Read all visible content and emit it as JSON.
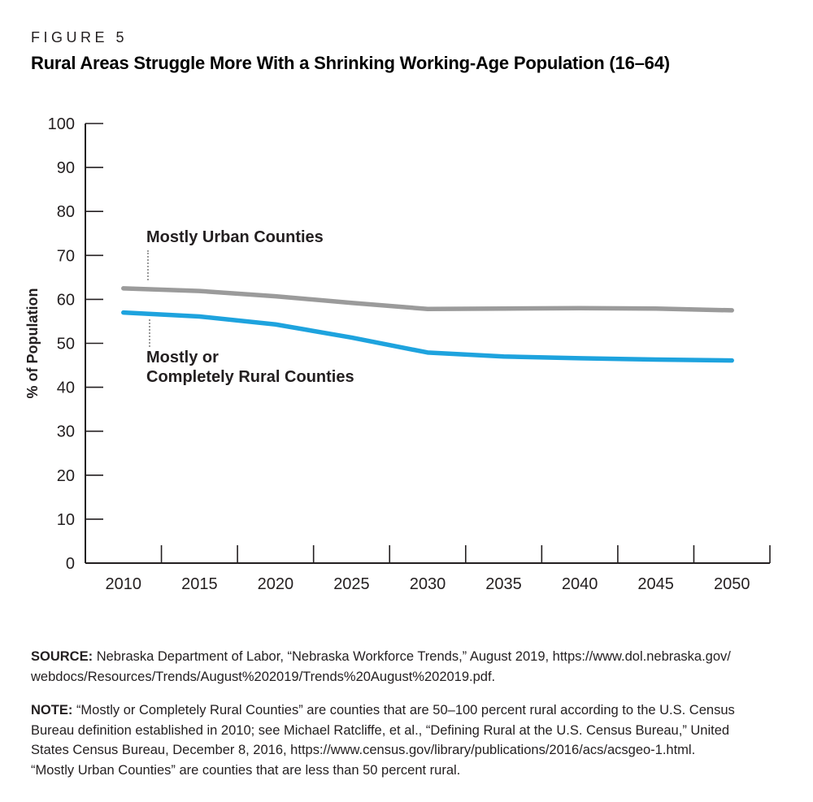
{
  "figure": {
    "kicker": "FIGURE 5",
    "title": "Rural Areas Struggle More With a Shrinking Working-Age Population (16–64)"
  },
  "chart_data": {
    "type": "line",
    "title": "Rural Areas Struggle More With a Shrinking Working-Age Population (16–64)",
    "xlabel": "",
    "ylabel": "% of Population",
    "ylim": [
      0,
      100
    ],
    "ytick_step": 10,
    "xticklabels": [
      "2010",
      "2015",
      "2020",
      "2025",
      "2030",
      "2035",
      "2040",
      "2045",
      "2050"
    ],
    "x": [
      2010,
      2015,
      2020,
      2025,
      2030,
      2035,
      2040,
      2045,
      2050
    ],
    "grid": false,
    "legend_position": "inline-annotations",
    "axis_color": "#231f20",
    "series": [
      {
        "name": "Mostly Urban Counties",
        "color": "#9b9b9b",
        "values": [
          62.5,
          61.9,
          60.7,
          59.2,
          57.8,
          57.9,
          58.0,
          57.9,
          57.5
        ]
      },
      {
        "name": "Mostly or Completely Rural Counties",
        "color": "#1ea3de",
        "values": [
          57.0,
          56.1,
          54.3,
          51.3,
          47.9,
          47.0,
          46.6,
          46.3,
          46.1
        ]
      }
    ]
  },
  "annotations": {
    "urban_label": "Mostly Urban Counties",
    "rural_label_line1": "Mostly or",
    "rural_label_line2": "Completely Rural Counties"
  },
  "source": {
    "label": "SOURCE:",
    "line1": "Nebraska Department of Labor, “Nebraska Workforce Trends,” August 2019, https://www.dol.nebraska.gov/",
    "line2": "webdocs/Resources/Trends/August%202019/Trends%20August%202019.pdf."
  },
  "note": {
    "label": "NOTE:",
    "line1": "“Mostly or Completely Rural Counties” are counties that are 50–100 percent rural according to the U.S. Census",
    "line2": "Bureau definition established in 2010; see Michael Ratcliffe, et al., “Defining Rural at the U.S. Census Bureau,” United",
    "line3": "States Census Bureau, December 8, 2016, https://www.census.gov/library/publications/2016/acs/acsgeo-1.html.",
    "line4": "“Mostly Urban Counties” are counties that are less than 50 percent rural."
  }
}
